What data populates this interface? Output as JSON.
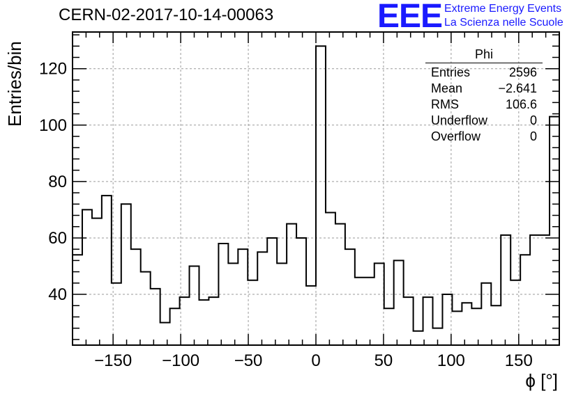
{
  "chart_data": {
    "type": "bar",
    "title": "CERN-02-2017-10-14-00063",
    "xlabel": "ϕ [°]",
    "ylabel": "Entries/bin",
    "xlim": [
      -180,
      180
    ],
    "ylim": [
      22,
      133
    ],
    "bin_width": 7.2,
    "grid": true,
    "x_ticks": [
      -150,
      -100,
      -50,
      0,
      50,
      100,
      150
    ],
    "x_tick_labels": [
      "−150",
      "−100",
      "−50",
      "0",
      "50",
      "100",
      "150"
    ],
    "y_ticks": [
      40,
      60,
      80,
      100,
      120
    ],
    "y_tick_labels": [
      "40",
      "60",
      "80",
      "100",
      "120"
    ],
    "values": [
      54,
      70,
      67,
      75,
      44,
      72,
      56,
      48,
      42,
      30,
      35,
      39,
      50,
      38,
      39,
      58,
      51,
      56,
      45,
      55,
      60,
      51,
      65,
      60,
      43,
      128,
      69,
      65,
      56,
      46,
      46,
      51,
      35,
      52,
      39,
      27,
      39,
      28,
      40,
      34,
      37,
      35,
      44,
      36,
      61,
      45,
      54,
      61,
      61,
      103
    ]
  },
  "stats_box": {
    "name": "Phi",
    "rows": [
      {
        "label": "Entries",
        "value": "2596"
      },
      {
        "label": "Mean",
        "value": "−2.641"
      },
      {
        "label": "RMS",
        "value": "106.6"
      },
      {
        "label": "Underflow",
        "value": "0"
      },
      {
        "label": "Overflow",
        "value": "0"
      }
    ]
  },
  "logo": {
    "text": "EEE",
    "line1": "Extreme Energy Events",
    "line2": "La Scienza nelle Scuole",
    "color": "#1a1aff"
  }
}
